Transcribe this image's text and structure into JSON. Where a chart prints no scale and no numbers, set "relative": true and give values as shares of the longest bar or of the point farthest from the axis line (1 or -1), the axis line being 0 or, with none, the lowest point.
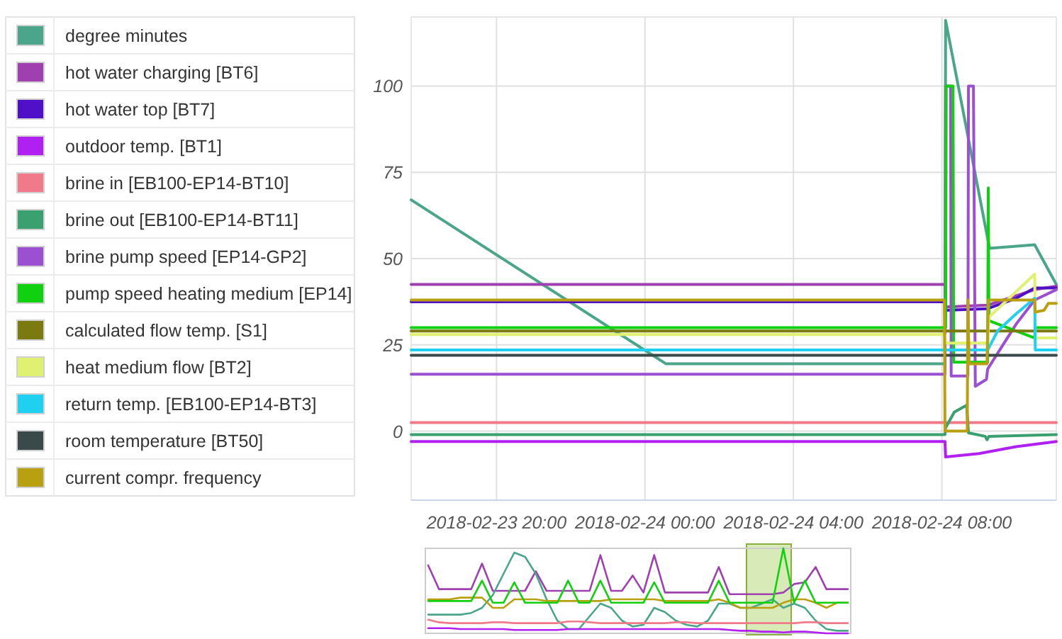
{
  "chart_data": [
    {
      "type": "line",
      "xlim": [
        "2018-02-23T17:42",
        "2018-02-24T11:05"
      ],
      "xticks": [
        {
          "value": "2018-02-23T20:00",
          "label": "2018-02-23 20:00"
        },
        {
          "value": "2018-02-24T00:00",
          "label": "2018-02-24 00:00"
        },
        {
          "value": "2018-02-24T04:00",
          "label": "2018-02-24 04:00"
        },
        {
          "value": "2018-02-24T08:00",
          "label": "2018-02-24 08:00"
        }
      ],
      "ylim": [
        -20,
        120
      ],
      "yticks": [
        0,
        25,
        50,
        75,
        100
      ],
      "grid": true,
      "legend": "left",
      "series": [
        {
          "name": "degree minutes",
          "color": "#4aa58a",
          "x": [
            "2018-02-23T17:42",
            "2018-02-24T00:34",
            "2018-02-24T08:05",
            "2018-02-24T08:06",
            "2018-02-24T09:17",
            "2018-02-24T10:30",
            "2018-02-24T11:05"
          ],
          "values": [
            67,
            19.5,
            19.5,
            119,
            53,
            54,
            42.5
          ]
        },
        {
          "name": "hot water charging [BT6]",
          "color": "#a040b0",
          "x": [
            "2018-02-23T17:42",
            "2018-02-24T08:05",
            "2018-02-24T08:06",
            "2018-02-24T09:14",
            "2018-02-24T10:30",
            "2018-02-24T11:05"
          ],
          "values": [
            42.5,
            42.5,
            36,
            36.5,
            41,
            42
          ]
        },
        {
          "name": "hot water top [BT7]",
          "color": "#5010c8",
          "x": [
            "2018-02-23T17:42",
            "2018-02-24T08:05",
            "2018-02-24T08:06",
            "2018-02-24T09:14",
            "2018-02-24T10:00",
            "2018-02-24T10:30",
            "2018-02-24T11:05"
          ],
          "values": [
            37.5,
            37.5,
            35,
            35.5,
            38.5,
            41.5,
            41.5
          ]
        },
        {
          "name": "outdoor temp. [BT1]",
          "color": "#b020f0",
          "x": [
            "2018-02-23T17:42",
            "2018-02-24T08:05",
            "2018-02-24T08:06",
            "2018-02-24T09:00",
            "2018-02-24T10:00",
            "2018-02-24T11:05"
          ],
          "values": [
            -3,
            -3,
            -7.5,
            -6.5,
            -4.5,
            -3
          ]
        },
        {
          "name": "brine in [EB100-EP14-BT10]",
          "color": "#f07a8a",
          "x": [
            "2018-02-23T17:42",
            "2018-02-24T11:05"
          ],
          "values": [
            2.5,
            2.5
          ]
        },
        {
          "name": "brine out [EB100-EP14-BT11]",
          "color": "#3aa070",
          "x": [
            "2018-02-23T17:42",
            "2018-02-24T08:05",
            "2018-02-24T08:06",
            "2018-02-24T08:20",
            "2018-02-24T08:40",
            "2018-02-24T08:43",
            "2018-02-24T09:10",
            "2018-02-24T09:13",
            "2018-02-24T09:16",
            "2018-02-24T11:05"
          ],
          "values": [
            -1,
            -1,
            1,
            5.5,
            7.5,
            -0.5,
            -1.5,
            -2.5,
            -1.5,
            -1
          ]
        },
        {
          "name": "brine pump speed [EP14-GP2]",
          "color": "#9a50d0",
          "x": [
            "2018-02-23T17:42",
            "2018-02-24T08:05",
            "2018-02-24T08:06",
            "2018-02-24T08:14",
            "2018-02-24T08:15",
            "2018-02-24T08:42",
            "2018-02-24T08:43",
            "2018-02-24T08:51",
            "2018-02-24T08:54",
            "2018-02-24T09:12",
            "2018-02-24T09:14",
            "2018-02-24T10:00",
            "2018-02-24T10:30",
            "2018-02-24T11:05"
          ],
          "values": [
            16.5,
            16.5,
            100,
            100,
            16,
            16,
            100,
            100,
            13,
            15,
            18,
            31,
            38,
            41
          ]
        },
        {
          "name": "pump speed heating medium [EP14]",
          "color": "#10d010",
          "x": [
            "2018-02-23T17:42",
            "2018-02-24T08:06",
            "2018-02-24T08:07",
            "2018-02-24T08:18",
            "2018-02-24T08:19",
            "2018-02-24T09:14",
            "2018-02-24T09:15",
            "2018-02-24T09:16",
            "2018-02-24T10:30",
            "2018-02-24T10:31",
            "2018-02-24T11:05"
          ],
          "values": [
            30,
            30,
            100,
            100,
            20,
            20,
            70.5,
            32,
            27,
            30,
            30
          ]
        },
        {
          "name": "calculated flow temp. [S1]",
          "color": "#7a7a10",
          "x": [
            "2018-02-23T17:42",
            "2018-02-24T11:05"
          ],
          "values": [
            29,
            29
          ]
        },
        {
          "name": "heat medium flow [BT2]",
          "color": "#e0f070",
          "x": [
            "2018-02-23T17:42",
            "2018-02-24T08:05",
            "2018-02-24T08:06",
            "2018-02-24T09:14",
            "2018-02-24T09:16",
            "2018-02-24T10:30",
            "2018-02-24T10:31",
            "2018-02-24T11:05"
          ],
          "values": [
            28,
            28,
            25.5,
            25.5,
            33,
            45.5,
            27,
            27
          ]
        },
        {
          "name": "return temp. [EB100-EP14-BT3]",
          "color": "#20d0f0",
          "x": [
            "2018-02-23T17:42",
            "2018-02-24T09:14",
            "2018-02-24T09:30",
            "2018-02-24T10:00",
            "2018-02-24T10:30",
            "2018-02-24T10:31",
            "2018-02-24T11:05"
          ],
          "values": [
            23.5,
            23.5,
            29,
            34,
            38.5,
            23.5,
            23.5
          ]
        },
        {
          "name": "room temperature [BT50]",
          "color": "#3a4a4a",
          "x": [
            "2018-02-23T17:42",
            "2018-02-24T11:05"
          ],
          "values": [
            22,
            22
          ]
        },
        {
          "name": "current compr. frequency",
          "color": "#b8a010",
          "x": [
            "2018-02-23T17:42",
            "2018-02-24T08:04",
            "2018-02-24T08:05",
            "2018-02-24T08:41",
            "2018-02-24T08:42",
            "2018-02-24T08:44",
            "2018-02-24T09:13",
            "2018-02-24T09:15",
            "2018-02-24T10:30",
            "2018-02-24T10:31",
            "2018-02-24T10:45",
            "2018-02-24T10:52",
            "2018-02-24T11:05"
          ],
          "values": [
            38,
            38,
            0,
            0,
            38,
            19.5,
            19.5,
            38,
            38,
            34.5,
            35,
            37,
            37
          ]
        }
      ]
    },
    {
      "type": "line",
      "relative": true,
      "categories": [
        null,
        null,
        null,
        null,
        null,
        null,
        null,
        null,
        null,
        null,
        null,
        null,
        null,
        null,
        null,
        null,
        null,
        null,
        null,
        null,
        null,
        null,
        null,
        null,
        null,
        null,
        null,
        null,
        null,
        null,
        null,
        null,
        null,
        null,
        null,
        null,
        null,
        null,
        null,
        null
      ],
      "series": [
        {
          "color": "#a040b0",
          "values": [
            0.8,
            0.52,
            0.52,
            0.52,
            0.52,
            0.82,
            0.5,
            0.5,
            0.5,
            0.5,
            0.73,
            0.5,
            0.5,
            0.5,
            0.5,
            0.5,
            0.92,
            0.5,
            0.5,
            0.68,
            0.48,
            0.92,
            0.48,
            0.48,
            0.48,
            0.48,
            0.48,
            0.78,
            0.46,
            0.46,
            0.46,
            0.46,
            0.46,
            0.48,
            0.58,
            0.6,
            0.78,
            0.52,
            0.52,
            0.52
          ]
        },
        {
          "color": "#4aa58a",
          "values": [
            0.22,
            0.22,
            0.22,
            0.22,
            0.24,
            0.3,
            0.45,
            0.7,
            0.95,
            0.9,
            0.7,
            0.4,
            0.15,
            0.05,
            0.05,
            0.2,
            0.35,
            0.3,
            0.15,
            0.08,
            0.1,
            0.3,
            0.25,
            0.15,
            0.1,
            0.08,
            0.15,
            0.35,
            0.35,
            0.3,
            0.3,
            0.35,
            0.4,
            0.3,
            0.35,
            0.3,
            0.15,
            0.05,
            0.03,
            0.03
          ]
        },
        {
          "color": "#b8a010",
          "values": [
            0.4,
            0.4,
            0.4,
            0.42,
            0.42,
            0.42,
            0.3,
            0.3,
            0.4,
            0.4,
            0.4,
            0.38,
            0.38,
            0.38,
            0.38,
            0.38,
            0.38,
            0.4,
            0.4,
            0.4,
            0.4,
            0.4,
            0.38,
            0.38,
            0.38,
            0.38,
            0.38,
            0.4,
            0.36,
            0.3,
            0.3,
            0.3,
            0.3,
            0.36,
            0.4,
            0.4,
            0.36,
            0.3,
            0.36,
            0.36
          ]
        },
        {
          "color": "#10d010",
          "values": [
            0.38,
            0.38,
            0.38,
            0.38,
            0.38,
            0.62,
            0.36,
            0.36,
            0.6,
            0.36,
            0.36,
            0.36,
            0.36,
            0.62,
            0.36,
            0.36,
            0.62,
            0.36,
            0.36,
            0.36,
            0.36,
            0.6,
            0.36,
            0.36,
            0.36,
            0.36,
            0.36,
            0.62,
            0.36,
            0.36,
            0.36,
            0.36,
            0.36,
            1,
            0.36,
            0.62,
            0.36,
            0.36,
            0.36,
            0.36
          ]
        },
        {
          "color": "#f07a8a",
          "values": [
            0.16,
            0.13,
            0.12,
            0.12,
            0.12,
            0.12,
            0.13,
            0.13,
            0.12,
            0.12,
            0.12,
            0.12,
            0.12,
            0.14,
            0.14,
            0.13,
            0.12,
            0.12,
            0.12,
            0.12,
            0.12,
            0.12,
            0.12,
            0.13,
            0.13,
            0.12,
            0.12,
            0.12,
            0.12,
            0.12,
            0.12,
            0.12,
            0.12,
            0.12,
            0.12,
            0.13,
            0.13,
            0.12,
            0.12,
            0.12
          ]
        },
        {
          "color": "#b020f0",
          "values": [
            0.06,
            0.06,
            0.06,
            0.05,
            0.05,
            0.05,
            0.05,
            0.05,
            0.04,
            0.04,
            0.04,
            0.04,
            0.04,
            0.05,
            0.05,
            0.05,
            0.05,
            0.05,
            0.05,
            0.05,
            0.05,
            0.05,
            0.05,
            0.05,
            0.05,
            0.05,
            0.05,
            0.05,
            0.04,
            0.03,
            0.03,
            0.02,
            0.02,
            0.01,
            0.02,
            0.02,
            0.01,
            0,
            0,
            0
          ]
        }
      ]
    }
  ]
}
